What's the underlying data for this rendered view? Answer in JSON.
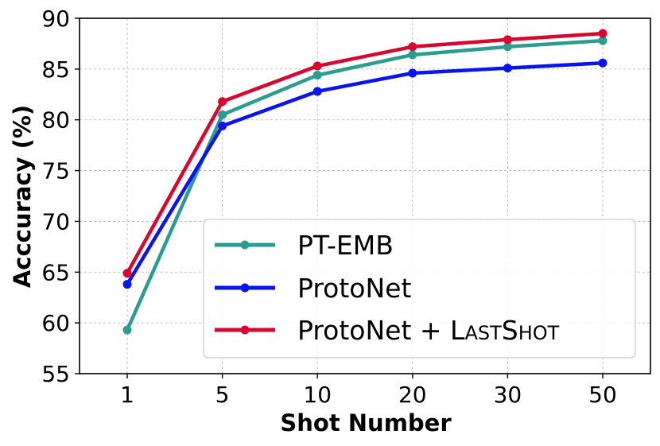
{
  "chart_data": {
    "type": "line",
    "categories": [
      "1",
      "5",
      "10",
      "20",
      "30",
      "50"
    ],
    "xlabel": "Shot Number",
    "ylabel": "Acccuracy (%)",
    "ylim": [
      55,
      90
    ],
    "yticks": [
      55,
      60,
      65,
      70,
      75,
      80,
      85,
      90
    ],
    "grid": true,
    "legend_position": "lower-right",
    "series": [
      {
        "name": "PT-EMB",
        "color": "#2a9d8f",
        "values": [
          59.3,
          80.5,
          84.4,
          86.4,
          87.2,
          87.8
        ]
      },
      {
        "name": "ProtoNet",
        "color": "#0a14ee",
        "values": [
          63.8,
          79.4,
          82.8,
          84.6,
          85.1,
          85.6
        ]
      },
      {
        "name": "ProtoNet + LastShot",
        "name_prefix": "ProtoNet + ",
        "name_sc1_cap": "L",
        "name_sc1_rest": "AST",
        "name_sc2_cap": "S",
        "name_sc2_rest": "HOT",
        "color": "#d7072f",
        "values": [
          64.9,
          81.8,
          85.3,
          87.2,
          87.9,
          88.5
        ]
      }
    ]
  }
}
